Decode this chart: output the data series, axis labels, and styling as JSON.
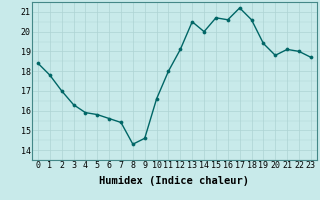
{
  "x": [
    0,
    1,
    2,
    3,
    4,
    5,
    6,
    7,
    8,
    9,
    10,
    11,
    12,
    13,
    14,
    15,
    16,
    17,
    18,
    19,
    20,
    21,
    22,
    23
  ],
  "y": [
    18.4,
    17.8,
    17.0,
    16.3,
    15.9,
    15.8,
    15.6,
    15.4,
    14.3,
    14.6,
    16.6,
    18.0,
    19.1,
    20.5,
    20.0,
    20.7,
    20.6,
    21.2,
    20.6,
    19.4,
    18.8,
    19.1,
    19.0,
    18.7
  ],
  "line_color": "#006666",
  "marker": "o",
  "marker_size": 2.2,
  "bg_color": "#c8eaea",
  "grid_color": "#aed4d4",
  "xlabel": "Humidex (Indice chaleur)",
  "xlim": [
    -0.5,
    23.5
  ],
  "ylim": [
    13.5,
    21.5
  ],
  "yticks": [
    14,
    15,
    16,
    17,
    18,
    19,
    20,
    21
  ],
  "xticks": [
    0,
    1,
    2,
    3,
    4,
    5,
    6,
    7,
    8,
    9,
    10,
    11,
    12,
    13,
    14,
    15,
    16,
    17,
    18,
    19,
    20,
    21,
    22,
    23
  ],
  "tick_fontsize": 6.0,
  "label_fontsize": 7.5,
  "line_width": 1.0,
  "spine_color": "#448888"
}
